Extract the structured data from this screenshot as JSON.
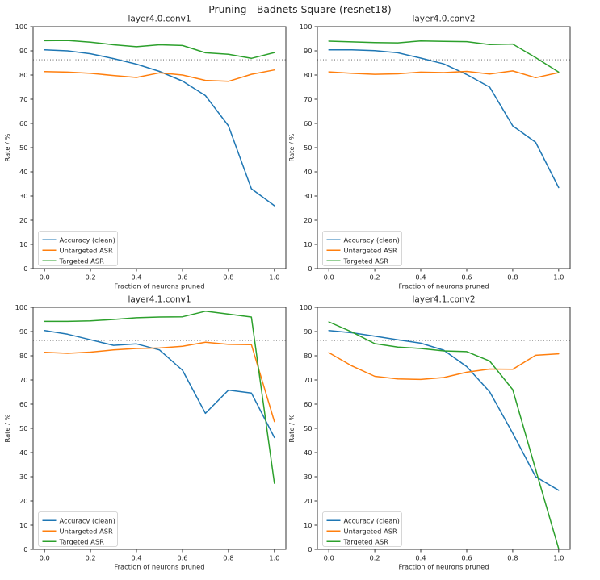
{
  "figure_title": "Pruning - Badnets Square (resnet18)",
  "colors": {
    "accuracy_clean": "#1f77b4",
    "untargeted_asr": "#ff7f0e",
    "targeted_asr": "#2ca02c",
    "reference_line": "#4d4d4d",
    "axis": "#363636",
    "text": "#262626",
    "legend_border": "#cccccc",
    "background": "#ffffff"
  },
  "legend": {
    "items": [
      {
        "label": "Accuracy (clean)",
        "color": "#1f77b4"
      },
      {
        "label": "Untargeted ASR",
        "color": "#ff7f0e"
      },
      {
        "label": "Targeted ASR",
        "color": "#2ca02c"
      }
    ]
  },
  "axes_shared": {
    "xlabel": "Fraction of neurons pruned",
    "ylabel": "Rate / %",
    "xlim": [
      -0.05,
      1.05
    ],
    "ylim": [
      0,
      100
    ],
    "grid": false,
    "legend_position": "lower left",
    "x_ticks": [
      0.0,
      0.2,
      0.4,
      0.6,
      0.8,
      1.0
    ],
    "x_tick_labels": [
      "0.0",
      "0.2",
      "0.4",
      "0.6",
      "0.8",
      "1.0"
    ],
    "y_ticks": [
      0,
      10,
      20,
      30,
      40,
      50,
      60,
      70,
      80,
      90,
      100
    ],
    "y_tick_labels": [
      "0",
      "10",
      "20",
      "30",
      "40",
      "50",
      "60",
      "70",
      "80",
      "90",
      "100"
    ]
  },
  "chart_data": [
    {
      "type": "line",
      "title": "layer4.0.conv1",
      "xlabel": "Fraction of neurons pruned",
      "ylabel": "Rate / %",
      "reference_line_y": 86.3,
      "x": [
        0.0,
        0.1,
        0.2,
        0.3,
        0.4,
        0.5,
        0.6,
        0.7,
        0.8,
        0.9,
        1.0
      ],
      "series": [
        {
          "name": "Accuracy (clean)",
          "color": "#1f77b4",
          "values": [
            90.4,
            90.0,
            88.8,
            86.8,
            84.5,
            81.5,
            77.5,
            71.5,
            59.0,
            33.0,
            26.0
          ]
        },
        {
          "name": "Untargeted ASR",
          "color": "#ff7f0e",
          "values": [
            81.4,
            81.2,
            80.7,
            79.8,
            79.0,
            80.9,
            80.0,
            77.8,
            77.4,
            80.3,
            82.1
          ]
        },
        {
          "name": "Targeted ASR",
          "color": "#2ca02c",
          "values": [
            94.2,
            94.3,
            93.6,
            92.5,
            91.7,
            92.5,
            92.2,
            89.2,
            88.6,
            86.9,
            89.3
          ]
        }
      ]
    },
    {
      "type": "line",
      "title": "layer4.0.conv2",
      "xlabel": "Fraction of neurons pruned",
      "ylabel": "Rate / %",
      "reference_line_y": 86.3,
      "x": [
        0.0,
        0.1,
        0.2,
        0.3,
        0.4,
        0.5,
        0.6,
        0.7,
        0.8,
        0.9,
        1.0
      ],
      "series": [
        {
          "name": "Accuracy (clean)",
          "color": "#1f77b4",
          "values": [
            90.4,
            90.4,
            90.1,
            89.2,
            87.0,
            84.6,
            80.2,
            75.0,
            59.0,
            52.2,
            33.5
          ]
        },
        {
          "name": "Untargeted ASR",
          "color": "#ff7f0e",
          "values": [
            81.3,
            80.7,
            80.3,
            80.5,
            81.2,
            81.0,
            81.5,
            80.4,
            81.7,
            78.9,
            81.0
          ]
        },
        {
          "name": "Targeted ASR",
          "color": "#2ca02c",
          "values": [
            94.0,
            93.7,
            93.4,
            93.3,
            94.1,
            93.9,
            93.8,
            92.6,
            92.8,
            87.2,
            81.2
          ]
        }
      ]
    },
    {
      "type": "line",
      "title": "layer4.1.conv1",
      "xlabel": "Fraction of neurons pruned",
      "ylabel": "Rate / %",
      "reference_line_y": 86.3,
      "x": [
        0.0,
        0.1,
        0.2,
        0.3,
        0.4,
        0.5,
        0.6,
        0.7,
        0.8,
        0.9,
        1.0
      ],
      "series": [
        {
          "name": "Accuracy (clean)",
          "color": "#1f77b4",
          "values": [
            90.4,
            88.9,
            86.6,
            84.3,
            84.9,
            82.4,
            74.0,
            56.2,
            65.8,
            64.6,
            46.2
          ]
        },
        {
          "name": "Untargeted ASR",
          "color": "#ff7f0e",
          "values": [
            81.4,
            81.0,
            81.5,
            82.4,
            83.0,
            83.2,
            83.9,
            85.6,
            84.7,
            84.6,
            52.8
          ]
        },
        {
          "name": "Targeted ASR",
          "color": "#2ca02c",
          "values": [
            94.2,
            94.2,
            94.4,
            95.0,
            95.7,
            96.0,
            96.1,
            98.4,
            97.2,
            96.0,
            27.3
          ]
        }
      ]
    },
    {
      "type": "line",
      "title": "layer4.1.conv2",
      "xlabel": "Fraction of neurons pruned",
      "ylabel": "Rate / %",
      "reference_line_y": 86.3,
      "x": [
        0.0,
        0.1,
        0.2,
        0.3,
        0.4,
        0.5,
        0.6,
        0.7,
        0.8,
        0.9,
        1.0
      ],
      "series": [
        {
          "name": "Accuracy (clean)",
          "color": "#1f77b4",
          "values": [
            90.4,
            89.5,
            88.1,
            86.6,
            85.2,
            82.3,
            75.5,
            65.1,
            48.0,
            30.0,
            24.4
          ]
        },
        {
          "name": "Untargeted ASR",
          "color": "#ff7f0e",
          "values": [
            81.3,
            75.8,
            71.5,
            70.4,
            70.2,
            71.0,
            73.2,
            74.5,
            74.4,
            80.2,
            80.8
          ]
        },
        {
          "name": "Targeted ASR",
          "color": "#2ca02c",
          "values": [
            94.0,
            89.8,
            85.0,
            83.6,
            83.0,
            82.0,
            81.7,
            77.8,
            66.0,
            33.0,
            0.3
          ]
        }
      ]
    }
  ]
}
